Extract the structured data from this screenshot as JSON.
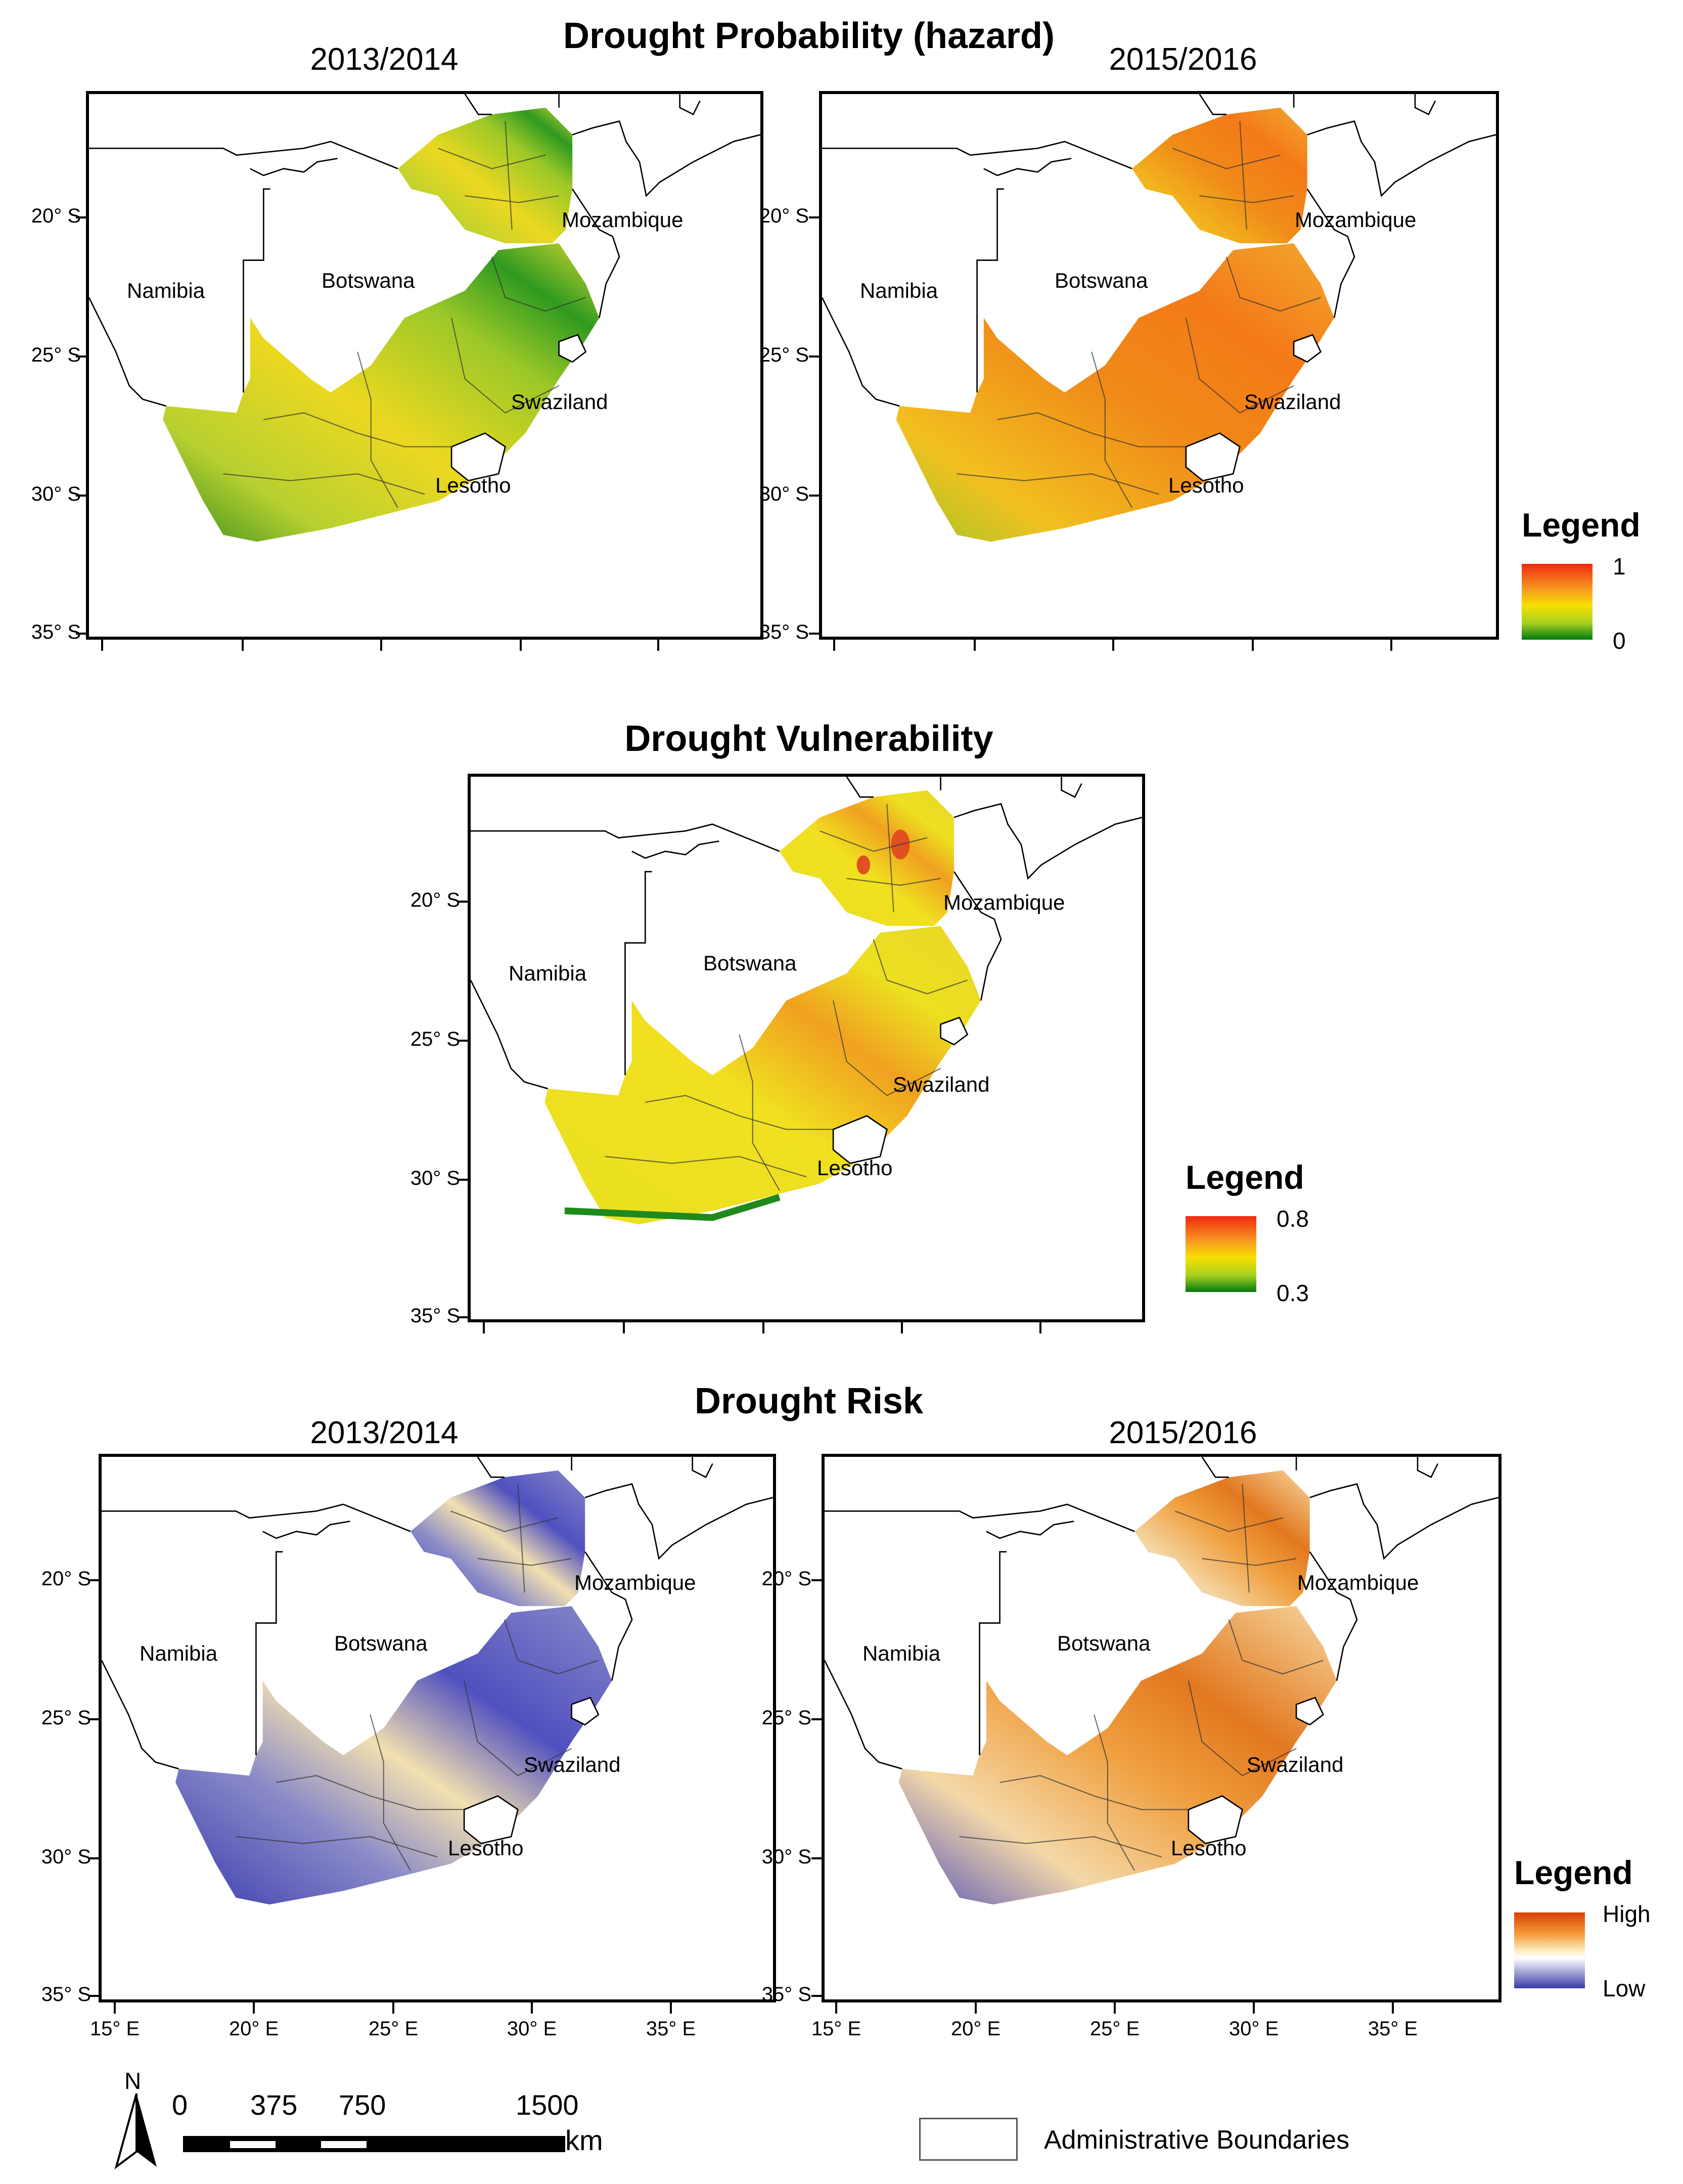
{
  "hazard": {
    "title": "Drought Probability (hazard)",
    "panels": [
      {
        "year": "2013/2014"
      },
      {
        "year": "2015/2016"
      }
    ],
    "legend": {
      "title": "Legend",
      "max": "1",
      "min": "0"
    }
  },
  "vulnerability": {
    "title": "Drought Vulnerability",
    "legend": {
      "title": "Legend",
      "max": "0.8",
      "min": "0.3"
    }
  },
  "risk": {
    "title": "Drought Risk",
    "panels": [
      {
        "year": "2013/2014"
      },
      {
        "year": "2015/2016"
      }
    ],
    "legend": {
      "title": "Legend",
      "max": "High",
      "min": "Low"
    }
  },
  "countries": {
    "namibia": "Namibia",
    "botswana": "Botswana",
    "mozambique": "Mozambique",
    "swaziland": "Swaziland",
    "lesotho": "Lesotho"
  },
  "lat_labels": [
    "20° S",
    "25° S",
    "30° S",
    "35° S"
  ],
  "lon_labels": [
    "15° E",
    "20° E",
    "25° E",
    "30° E",
    "35° E"
  ],
  "scale_bar": {
    "north": "N",
    "marks": [
      "0",
      "375",
      "750",
      "1500"
    ],
    "unit": "km"
  },
  "boundary_legend": {
    "label": "Administrative Boundaries"
  },
  "colors": {
    "hazard_high": "#f03010",
    "hazard_mid": "#f6e000",
    "hazard_low": "#007a10",
    "risk_high": "#d84a00",
    "risk_mid": "#fbe8b0",
    "risk_low": "#3a3aa8"
  }
}
